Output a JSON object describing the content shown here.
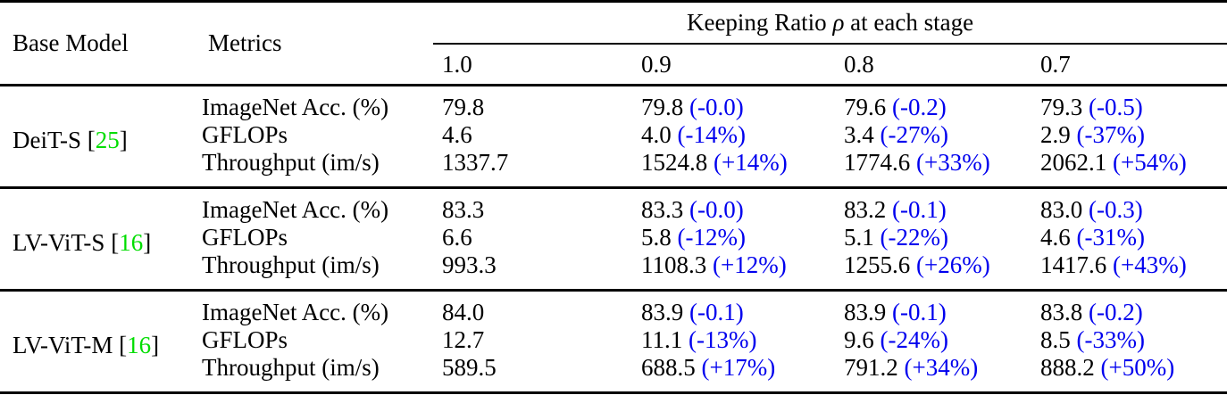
{
  "table": {
    "headers": {
      "base_model": "Base Model",
      "metrics": "Metrics",
      "group_header_pre": "Keeping Ratio ",
      "group_header_rho": "ρ",
      "group_header_post": " at each stage",
      "ratios": [
        "1.0",
        "0.9",
        "0.8",
        "0.7"
      ]
    },
    "bracket_open": "[",
    "bracket_close": "]",
    "groups": [
      {
        "model": "DeiT-S",
        "cite": "25",
        "rows": [
          {
            "metric": "ImageNet Acc. (%)",
            "values": [
              {
                "v": "79.8",
                "d": ""
              },
              {
                "v": "79.8",
                "d": "(-0.0)"
              },
              {
                "v": "79.6",
                "d": "(-0.2)"
              },
              {
                "v": "79.3",
                "d": "(-0.5)"
              }
            ]
          },
          {
            "metric": "GFLOPs",
            "values": [
              {
                "v": "4.6",
                "d": ""
              },
              {
                "v": "4.0",
                "d": "(-14%)"
              },
              {
                "v": "3.4",
                "d": "(-27%)"
              },
              {
                "v": "2.9",
                "d": "(-37%)"
              }
            ]
          },
          {
            "metric": "Throughput (im/s)",
            "values": [
              {
                "v": "1337.7",
                "d": ""
              },
              {
                "v": "1524.8",
                "d": "(+14%)"
              },
              {
                "v": "1774.6",
                "d": "(+33%)"
              },
              {
                "v": "2062.1",
                "d": "(+54%)"
              }
            ]
          }
        ]
      },
      {
        "model": "LV-ViT-S",
        "cite": "16",
        "rows": [
          {
            "metric": "ImageNet Acc. (%)",
            "values": [
              {
                "v": "83.3",
                "d": ""
              },
              {
                "v": "83.3",
                "d": "(-0.0)"
              },
              {
                "v": "83.2",
                "d": "(-0.1)"
              },
              {
                "v": "83.0",
                "d": "(-0.3)"
              }
            ]
          },
          {
            "metric": "GFLOPs",
            "values": [
              {
                "v": "6.6",
                "d": ""
              },
              {
                "v": "5.8",
                "d": "(-12%)"
              },
              {
                "v": "5.1",
                "d": "(-22%)"
              },
              {
                "v": "4.6",
                "d": "(-31%)"
              }
            ]
          },
          {
            "metric": "Throughput (im/s)",
            "values": [
              {
                "v": "993.3",
                "d": ""
              },
              {
                "v": "1108.3",
                "d": "(+12%)"
              },
              {
                "v": "1255.6",
                "d": "(+26%)"
              },
              {
                "v": "1417.6",
                "d": "(+43%)"
              }
            ]
          }
        ]
      },
      {
        "model": "LV-ViT-M",
        "cite": "16",
        "rows": [
          {
            "metric": "ImageNet Acc. (%)",
            "values": [
              {
                "v": "84.0",
                "d": ""
              },
              {
                "v": "83.9",
                "d": "(-0.1)"
              },
              {
                "v": "83.9",
                "d": "(-0.1)"
              },
              {
                "v": "83.8",
                "d": "(-0.2)"
              }
            ]
          },
          {
            "metric": "GFLOPs",
            "values": [
              {
                "v": "12.7",
                "d": ""
              },
              {
                "v": "11.1",
                "d": "(-13%)"
              },
              {
                "v": "9.6",
                "d": "(-24%)"
              },
              {
                "v": "8.5",
                "d": "(-33%)"
              }
            ]
          },
          {
            "metric": "Throughput (im/s)",
            "values": [
              {
                "v": "589.5",
                "d": ""
              },
              {
                "v": "688.5",
                "d": "(+17%)"
              },
              {
                "v": "791.2",
                "d": "(+34%)"
              },
              {
                "v": "888.2",
                "d": "(+50%)"
              }
            ]
          }
        ]
      }
    ],
    "colors": {
      "delta_blue": "#0000EE",
      "cite_green": "#00DD00",
      "text_black": "#000000",
      "background": "#FFFFFF"
    }
  }
}
